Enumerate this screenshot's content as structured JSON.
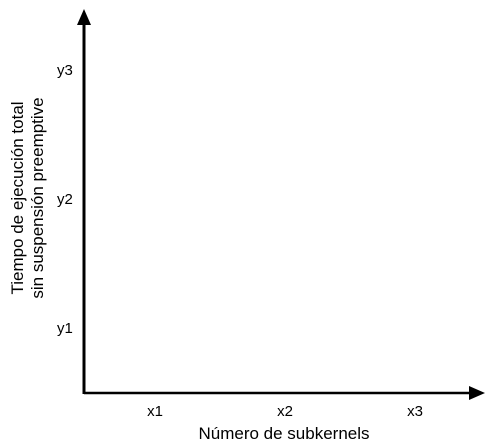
{
  "axes": {
    "x_title": "Número de subkernels",
    "y_title_line1": "Tiempo de ejecución total",
    "y_title_line2": "sin suspensión preemptive",
    "x_ticks": [
      "x1",
      "x2",
      "x3"
    ],
    "y_ticks": [
      "y1",
      "y2",
      "y3"
    ]
  },
  "colors": {
    "line": "#000000",
    "text": "#000000",
    "background": "#ffffff"
  }
}
